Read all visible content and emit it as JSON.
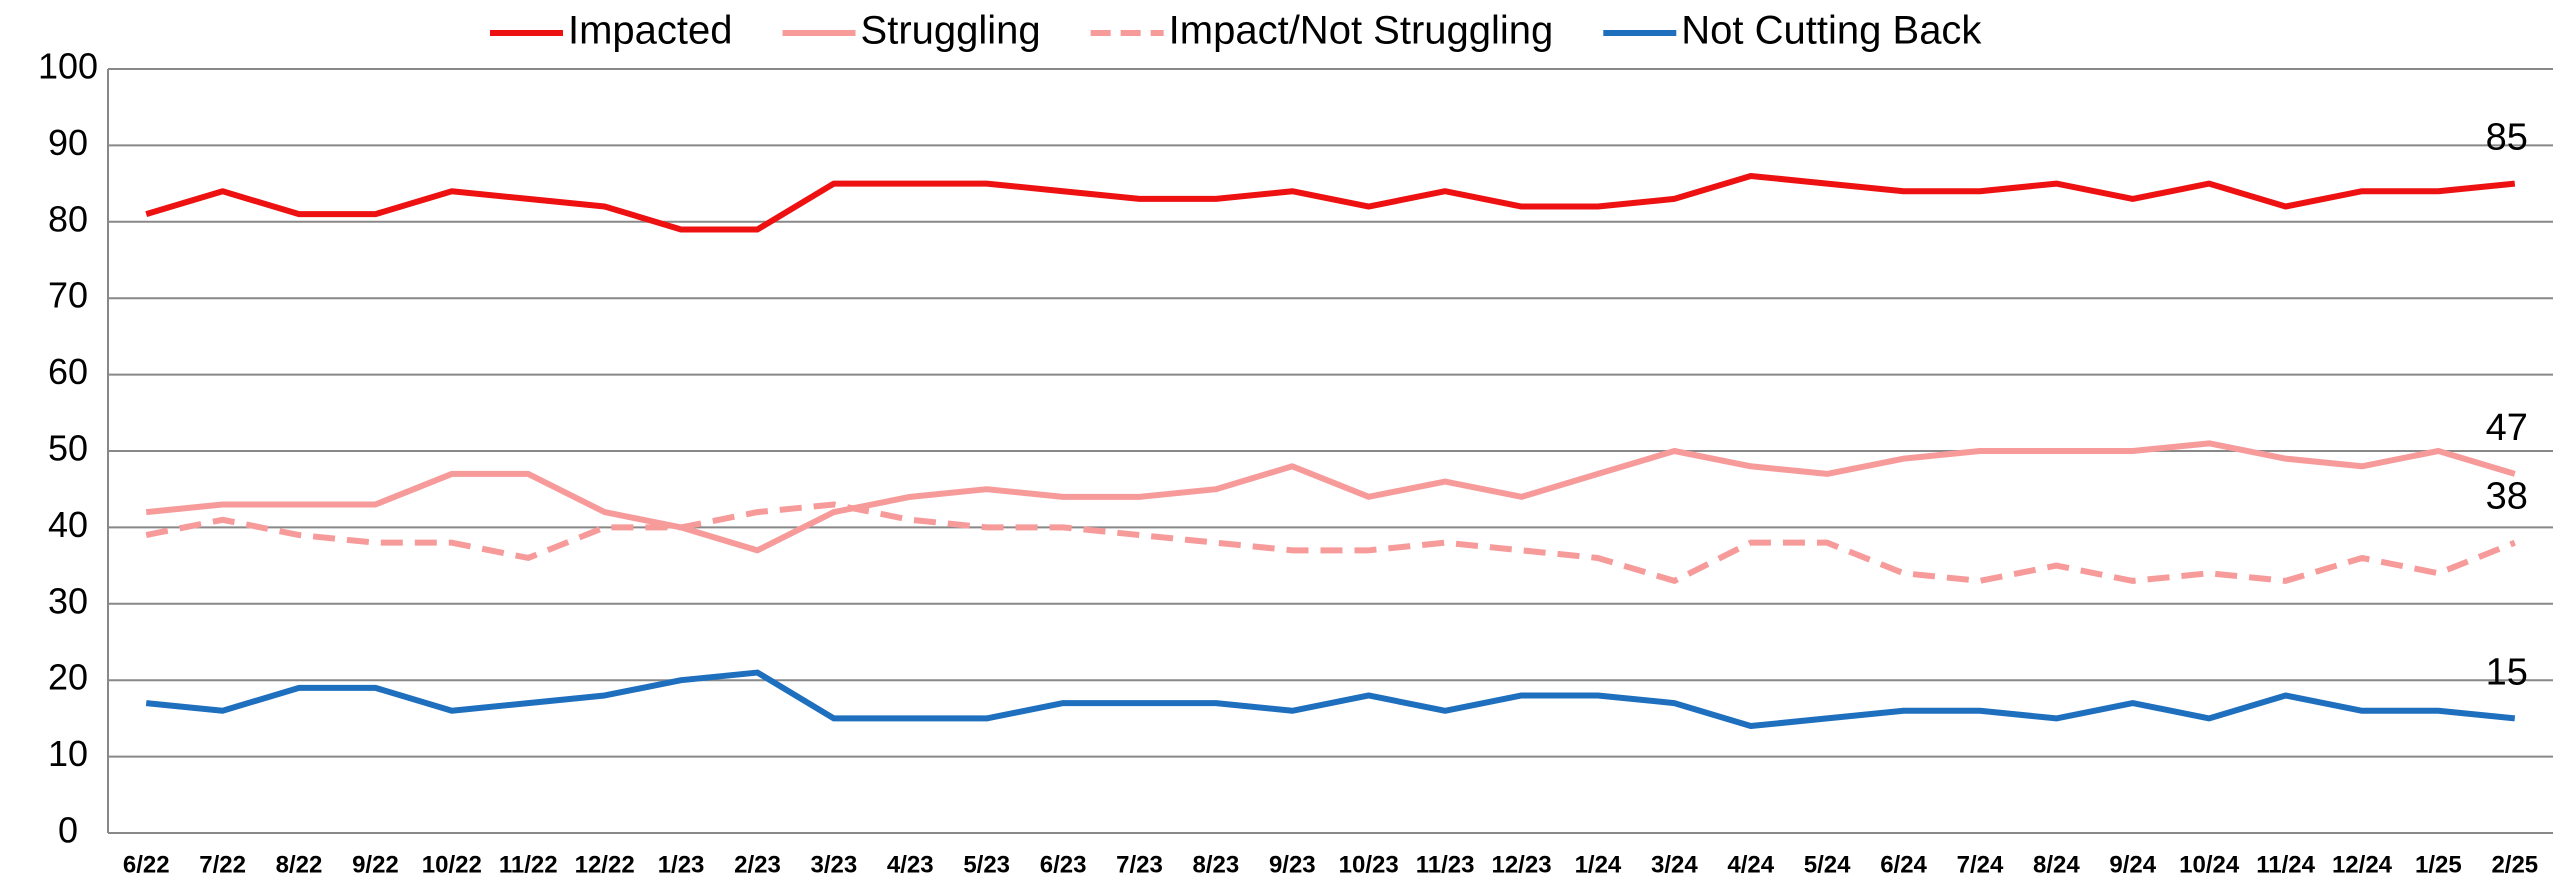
{
  "chart_data": {
    "type": "line",
    "categories": [
      "6/22",
      "7/22",
      "8/22",
      "9/22",
      "10/22",
      "11/22",
      "12/22",
      "1/23",
      "2/23",
      "3/23",
      "4/23",
      "5/23",
      "6/23",
      "7/23",
      "8/23",
      "9/23",
      "10/23",
      "11/23",
      "12/23",
      "1/24",
      "3/24",
      "4/24",
      "5/24",
      "6/24",
      "7/24",
      "8/24",
      "9/24",
      "10/24",
      "11/24",
      "12/24",
      "1/25",
      "2/25"
    ],
    "series": [
      {
        "name": "Impacted",
        "color": "#ee1111",
        "dashed": false,
        "values": [
          81,
          84,
          81,
          81,
          84,
          83,
          82,
          79,
          79,
          85,
          85,
          85,
          84,
          83,
          83,
          84,
          82,
          84,
          82,
          82,
          83,
          86,
          85,
          84,
          84,
          85,
          83,
          85,
          82,
          84,
          84,
          85
        ]
      },
      {
        "name": "Struggling",
        "color": "#f79a9a",
        "dashed": false,
        "values": [
          42,
          43,
          43,
          43,
          47,
          47,
          42,
          40,
          37,
          42,
          44,
          45,
          44,
          44,
          45,
          48,
          44,
          46,
          44,
          47,
          50,
          48,
          47,
          49,
          50,
          50,
          50,
          51,
          49,
          48,
          50,
          47
        ]
      },
      {
        "name": "Impact/Not Struggling",
        "color": "#f79a9a",
        "dashed": true,
        "values": [
          39,
          41,
          39,
          38,
          38,
          36,
          40,
          40,
          42,
          43,
          41,
          40,
          40,
          39,
          38,
          37,
          37,
          38,
          37,
          36,
          33,
          38,
          38,
          34,
          33,
          35,
          33,
          34,
          33,
          36,
          34,
          38
        ]
      },
      {
        "name": "Not Cutting Back",
        "color": "#1f6fbf",
        "dashed": false,
        "values": [
          17,
          16,
          19,
          19,
          16,
          17,
          18,
          20,
          21,
          15,
          15,
          15,
          17,
          17,
          17,
          16,
          18,
          16,
          18,
          18,
          17,
          14,
          15,
          16,
          16,
          15,
          17,
          15,
          18,
          16,
          16,
          15
        ]
      }
    ],
    "ylim": [
      0,
      100
    ],
    "yticks": [
      0,
      10,
      20,
      30,
      40,
      50,
      60,
      70,
      80,
      90,
      100
    ],
    "grid": true,
    "legend": "top"
  }
}
